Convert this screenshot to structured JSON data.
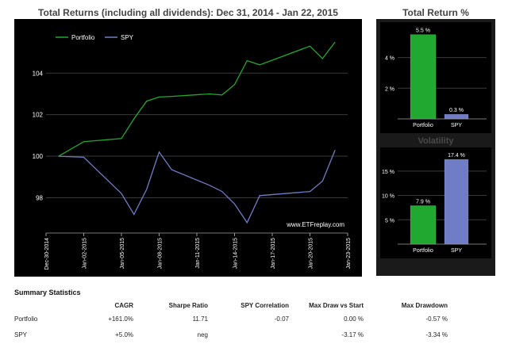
{
  "colors": {
    "portfolio": "#21a830",
    "spy": "#6f7dc6",
    "gridline": "#3a3a3a",
    "panel": "#000000",
    "panelFrame": "#222222"
  },
  "chart_data": [
    {
      "type": "line",
      "title": "Total Returns (including all dividends): Dec 31, 2014 - Jan 22, 2015",
      "xlabel": "",
      "ylabel": "",
      "x_ticks": [
        "Dec-30-2014",
        "Jan-02-2015",
        "Jan-05-2015",
        "Jan-08-2015",
        "Jan-11-2015",
        "Jan-14-2015",
        "Jan-17-2015",
        "Jan-20-2015",
        "Jan-23-2015"
      ],
      "y_ticks": [
        98,
        100,
        102,
        104
      ],
      "ylim": [
        96.3,
        106.3
      ],
      "xlim": [
        "2014-12-30",
        "2015-01-23"
      ],
      "grid": true,
      "legend": "top-left",
      "watermark": "www.ETFreplay.com",
      "series": [
        {
          "name": "Portfolio",
          "x": [
            "2014-12-31",
            "2015-01-02",
            "2015-01-05",
            "2015-01-06",
            "2015-01-07",
            "2015-01-08",
            "2015-01-09",
            "2015-01-12",
            "2015-01-13",
            "2015-01-14",
            "2015-01-15",
            "2015-01-16",
            "2015-01-20",
            "2015-01-21",
            "2015-01-22"
          ],
          "values": [
            100.0,
            100.7,
            100.85,
            101.8,
            102.65,
            102.85,
            102.88,
            103.0,
            102.95,
            103.45,
            104.6,
            104.4,
            105.3,
            104.7,
            105.5
          ]
        },
        {
          "name": "SPY",
          "x": [
            "2014-12-31",
            "2015-01-02",
            "2015-01-05",
            "2015-01-06",
            "2015-01-07",
            "2015-01-08",
            "2015-01-09",
            "2015-01-12",
            "2015-01-13",
            "2015-01-14",
            "2015-01-15",
            "2015-01-16",
            "2015-01-20",
            "2015-01-21",
            "2015-01-22"
          ],
          "values": [
            100.0,
            99.95,
            98.2,
            97.2,
            98.4,
            100.2,
            99.35,
            98.6,
            98.3,
            97.7,
            96.8,
            98.1,
            98.3,
            98.8,
            100.3
          ]
        }
      ]
    },
    {
      "type": "bar",
      "title": "Total Return %",
      "categories": [
        "Portfolio",
        "SPY"
      ],
      "values": [
        5.5,
        0.3
      ],
      "value_labels": [
        "5.5 %",
        "0.3 %"
      ],
      "y_ticks": [
        "2 %",
        "4 %"
      ],
      "y_tick_values": [
        2,
        4
      ],
      "ylim": [
        0,
        6.1
      ]
    },
    {
      "type": "bar",
      "title": "Volatility",
      "categories": [
        "Portfolio",
        "SPY"
      ],
      "values": [
        7.9,
        17.4
      ],
      "value_labels": [
        "7.9 %",
        "17.4 %"
      ],
      "y_ticks": [
        "5 %",
        "10 %",
        "15 %"
      ],
      "y_tick_values": [
        5,
        10,
        15
      ],
      "ylim": [
        0,
        19.2
      ]
    }
  ],
  "stats": {
    "title": "Summary Statistics",
    "columns": [
      "",
      "CAGR",
      "Sharpe Ratio",
      "SPY Correlation",
      "Max Draw vs Start",
      "Max Drawdown"
    ],
    "rows": [
      {
        "name": "Portfolio",
        "cagr": "+161.0%",
        "sharpe": "11.71",
        "corr": "-0.07",
        "maxdraw": "0.00 %",
        "maxdd": "-0.57 %"
      },
      {
        "name": "SPY",
        "cagr": "+5.0%",
        "sharpe": "neg",
        "corr": "",
        "maxdraw": "-3.17 %",
        "maxdd": "-3.34 %"
      }
    ]
  }
}
